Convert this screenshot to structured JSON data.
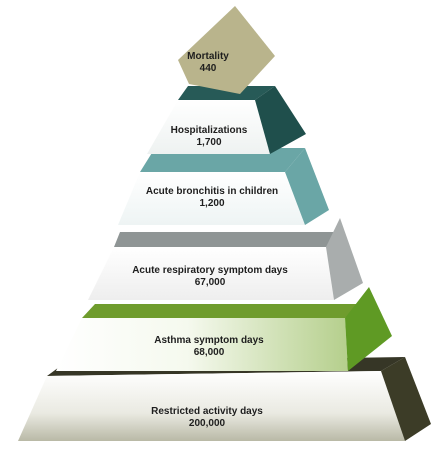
{
  "pyramid": {
    "tiers": [
      {
        "label": "Mortality",
        "value": "440",
        "front": "#b9b48c",
        "side": "#b9b48c",
        "top": "#b9b48c"
      },
      {
        "label": "Hospitalizations",
        "value": "1,700",
        "front": "#ffffff",
        "side": "#1f4f4c",
        "top": "#275a57"
      },
      {
        "label": "Acute bronchitis in children",
        "value": "1,200",
        "front": "#ffffff",
        "side": "#6aa6a6",
        "top": "#6aa6a6"
      },
      {
        "label": "Acute respiratory symptom days",
        "value": "67,000",
        "front": "#ffffff",
        "side": "#a9adad",
        "top": "#8f9595"
      },
      {
        "label": "Asthma symptom days",
        "value": "68,000",
        "front": "#ffffff",
        "side": "#5f9a24",
        "top": "#6f9c2d"
      },
      {
        "label": "Restricted activity days",
        "value": "200,000",
        "front": "#ffffff",
        "side": "#3c3c27",
        "top": "#363626"
      }
    ]
  }
}
